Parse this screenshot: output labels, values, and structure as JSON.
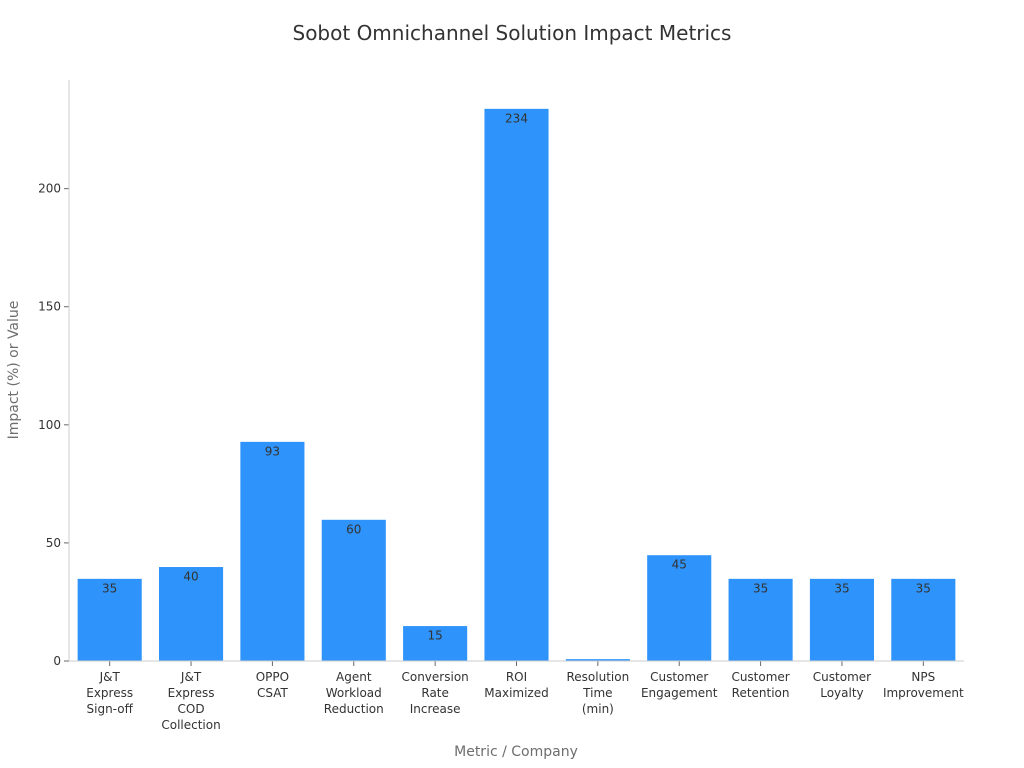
{
  "chart_data": {
    "type": "bar",
    "title": "Sobot Omnichannel Solution Impact Metrics",
    "xlabel": "Metric / Company",
    "ylabel": "Impact (%) or Value",
    "categories": [
      [
        "J&T",
        "Express",
        "Sign-off"
      ],
      [
        "J&T",
        "Express",
        "COD",
        "Collection"
      ],
      [
        "OPPO",
        "CSAT"
      ],
      [
        "Agent",
        "Workload",
        "Reduction"
      ],
      [
        "Conversion",
        "Rate",
        "Increase"
      ],
      [
        "ROI",
        "Maximized"
      ],
      [
        "Resolution",
        "Time",
        "(min)"
      ],
      [
        "Customer",
        "Engagement"
      ],
      [
        "Customer",
        "Retention"
      ],
      [
        "Customer",
        "Loyalty"
      ],
      [
        "NPS",
        "Improvement"
      ]
    ],
    "values": [
      35,
      40,
      93,
      60,
      15,
      234,
      1,
      45,
      35,
      35,
      35
    ],
    "data_labels": [
      "35",
      "40",
      "93",
      "60",
      "15",
      "234",
      "",
      "45",
      "35",
      "35",
      "35"
    ],
    "ylim": [
      0,
      246
    ],
    "yticks": [
      0,
      50,
      100,
      150,
      200
    ],
    "grid": false,
    "bar_color": "#2e93fa"
  }
}
